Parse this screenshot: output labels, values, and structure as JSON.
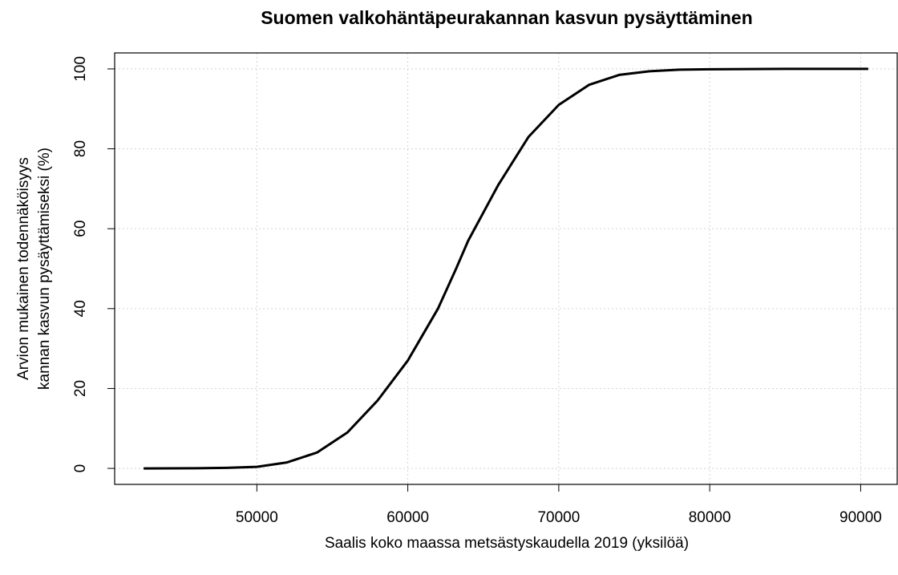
{
  "chart_data": {
    "type": "line",
    "title": "Suomen valkohäntäpeurakannan kasvun pysäyttäminen",
    "x_label": "Saalis koko maassa metsästyskaudella 2019 (yksilöä)",
    "y_label": [
      "Arvion mukainen todennäköisyys",
      "kannan kasvun pysäyttämiseksi (%)"
    ],
    "x": [
      42500,
      46000,
      48000,
      50000,
      52000,
      54000,
      56000,
      58000,
      60000,
      62000,
      63200,
      64000,
      66000,
      68000,
      70000,
      72000,
      74000,
      76000,
      78000,
      80000,
      85000,
      90500
    ],
    "series": [
      {
        "name": "todennäköisyys",
        "color": "#000000",
        "values": [
          0,
          0.05,
          0.15,
          0.4,
          1.5,
          4,
          9,
          17,
          27,
          40,
          50,
          57,
          71,
          83,
          91,
          96,
          98.5,
          99.4,
          99.8,
          99.9,
          100,
          100
        ]
      }
    ],
    "xlim": [
      40580,
      92420
    ],
    "ylim": [
      -4,
      104
    ],
    "xticks": [
      50000,
      60000,
      70000,
      80000,
      90000
    ],
    "yticks": [
      0,
      20,
      40,
      60,
      80,
      100
    ],
    "grid": true
  }
}
